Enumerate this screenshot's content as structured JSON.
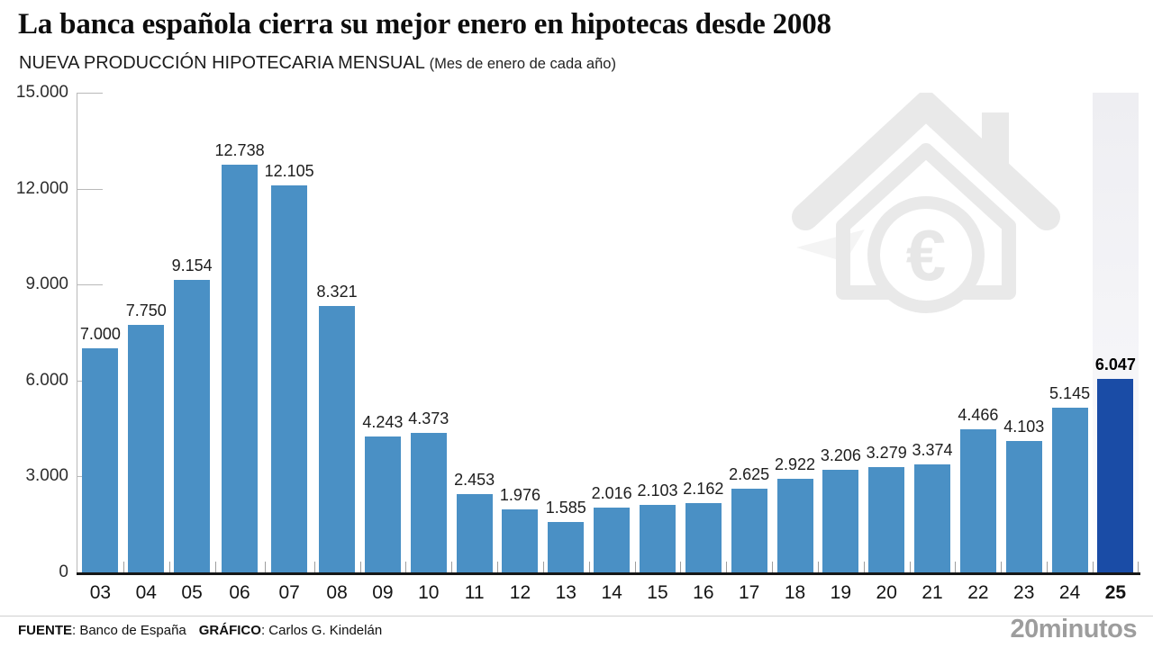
{
  "header": {
    "title": "La banca española cierra su mejor enero en hipotecas desde 2008",
    "subtitle": "NUEVA PRODUCCIÓN HIPOTECARIA MENSUAL",
    "subtitle_note": "(Mes de enero de cada año)"
  },
  "chart_data": {
    "type": "bar",
    "title": "Nueva producción hipotecaria mensual (mes de enero de cada año)",
    "categories": [
      "03",
      "04",
      "05",
      "06",
      "07",
      "08",
      "09",
      "10",
      "11",
      "12",
      "13",
      "14",
      "15",
      "16",
      "17",
      "18",
      "19",
      "20",
      "21",
      "22",
      "23",
      "24",
      "25"
    ],
    "values": [
      7000,
      7750,
      9154,
      12738,
      12105,
      8321,
      4243,
      4373,
      2453,
      1976,
      1585,
      2016,
      2103,
      2162,
      2625,
      2922,
      3206,
      3279,
      3374,
      4466,
      4103,
      5145,
      6047
    ],
    "value_labels": [
      "7.000",
      "7.750",
      "9.154",
      "12.738",
      "12.105",
      "8.321",
      "4.243",
      "4.373",
      "2.453",
      "1.976",
      "1.585",
      "2.016",
      "2.103",
      "2.162",
      "2.625",
      "2.922",
      "3.206",
      "3.279",
      "3.374",
      "4.466",
      "4.103",
      "5.145",
      "6.047"
    ],
    "xlabel": "",
    "ylabel": "",
    "ylim": [
      0,
      15000
    ],
    "yticks": [
      {
        "label": "15.000",
        "value": 15000
      },
      {
        "label": "12.000",
        "value": 12000
      },
      {
        "label": "9.000",
        "value": 9000
      },
      {
        "label": "6.000",
        "value": 6000
      },
      {
        "label": "3.000",
        "value": 3000
      },
      {
        "label": "0",
        "value": 0
      }
    ],
    "grid": "axis-ticks-only",
    "legend_position": "none",
    "highlight_index": 22,
    "bar_color": "#4a90c5",
    "highlight_color": "#1a4ca6"
  },
  "watermark": {
    "icon": "house-euro-icon",
    "color": "#e9e9e9"
  },
  "footer": {
    "source_label": "FUENTE",
    "source_value": ": Banco de España",
    "credit_label": "GRÁFICO",
    "credit_value": ": Carlos G. Kindelán",
    "logo": "20minutos"
  }
}
